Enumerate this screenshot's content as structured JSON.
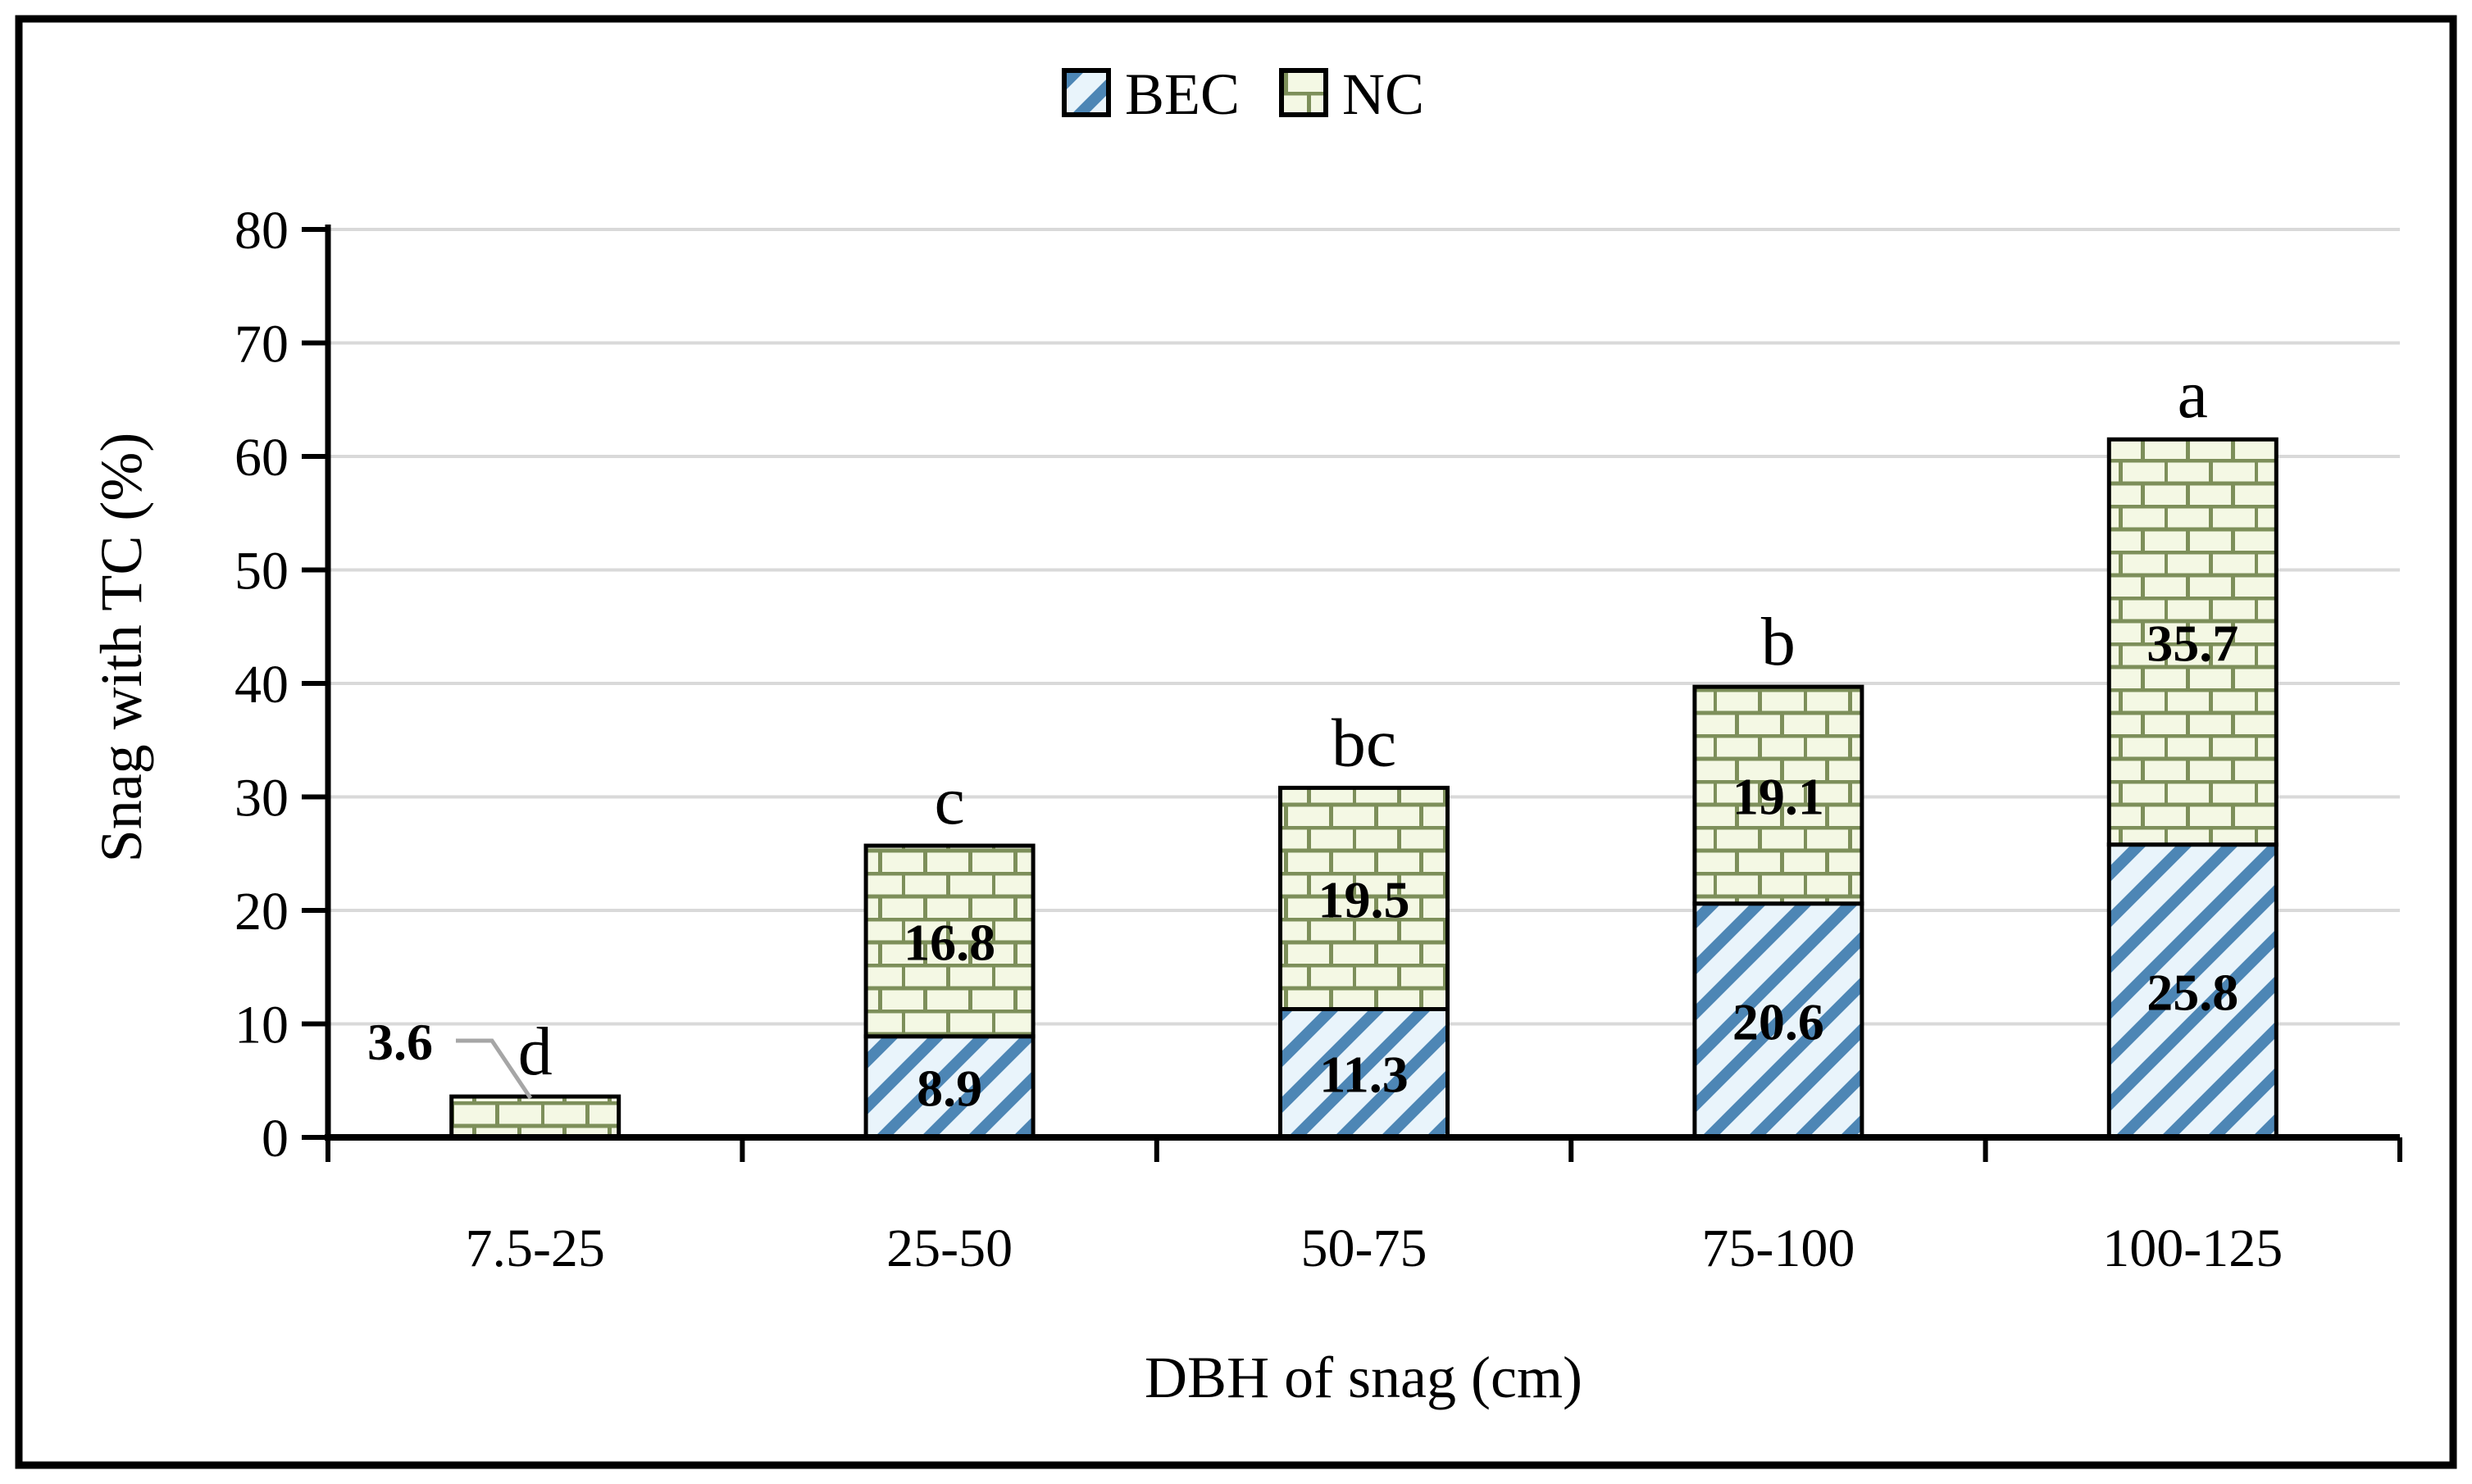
{
  "figure": {
    "background": "#ffffff",
    "border_color": "#000000"
  },
  "legend": {
    "items": [
      {
        "label": "BEC",
        "swatch": "blue-diagonal-hatch"
      },
      {
        "label": "NC",
        "swatch": "green-brick-pattern"
      }
    ],
    "position": "top-center"
  },
  "chart_data": {
    "type": "bar",
    "stacked": true,
    "title": "",
    "xlabel": "DBH of snag (cm)",
    "ylabel": "Snag with TC (%)",
    "categories": [
      "7.5-25",
      "25-50",
      "50-75",
      "75-100",
      "100-125"
    ],
    "series": [
      {
        "name": "BEC",
        "values": [
          0,
          8.9,
          11.3,
          20.6,
          25.8
        ],
        "pattern": "diagonal-hatch",
        "stripe_color": "#4d86b5",
        "fill_background": "#e9f4fb"
      },
      {
        "name": "NC",
        "values": [
          3.6,
          16.8,
          19.5,
          19.1,
          35.7
        ],
        "pattern": "brick",
        "mortar_color": "#7d8f5a",
        "fill_background": "#f4f8e4"
      }
    ],
    "stack_totals": [
      3.6,
      25.7,
      30.8,
      39.7,
      61.5
    ],
    "significance_letters": [
      "d",
      "c",
      "bc",
      "b",
      "a"
    ],
    "outside_label": {
      "text": "3.6",
      "series": "NC",
      "category": "7.5-25"
    },
    "ylim": [
      0,
      80
    ],
    "ytick_step": 10,
    "yticks": [
      0,
      10,
      20,
      30,
      40,
      50,
      60,
      70,
      80
    ],
    "grid": true,
    "legend_position": "top-center",
    "style": {
      "grid_color": "#d9d9d9",
      "axis_color": "#000000",
      "bar_border_color": "#000000",
      "leader_line_color": "#a6a6a6",
      "label_color": "#000000"
    }
  }
}
